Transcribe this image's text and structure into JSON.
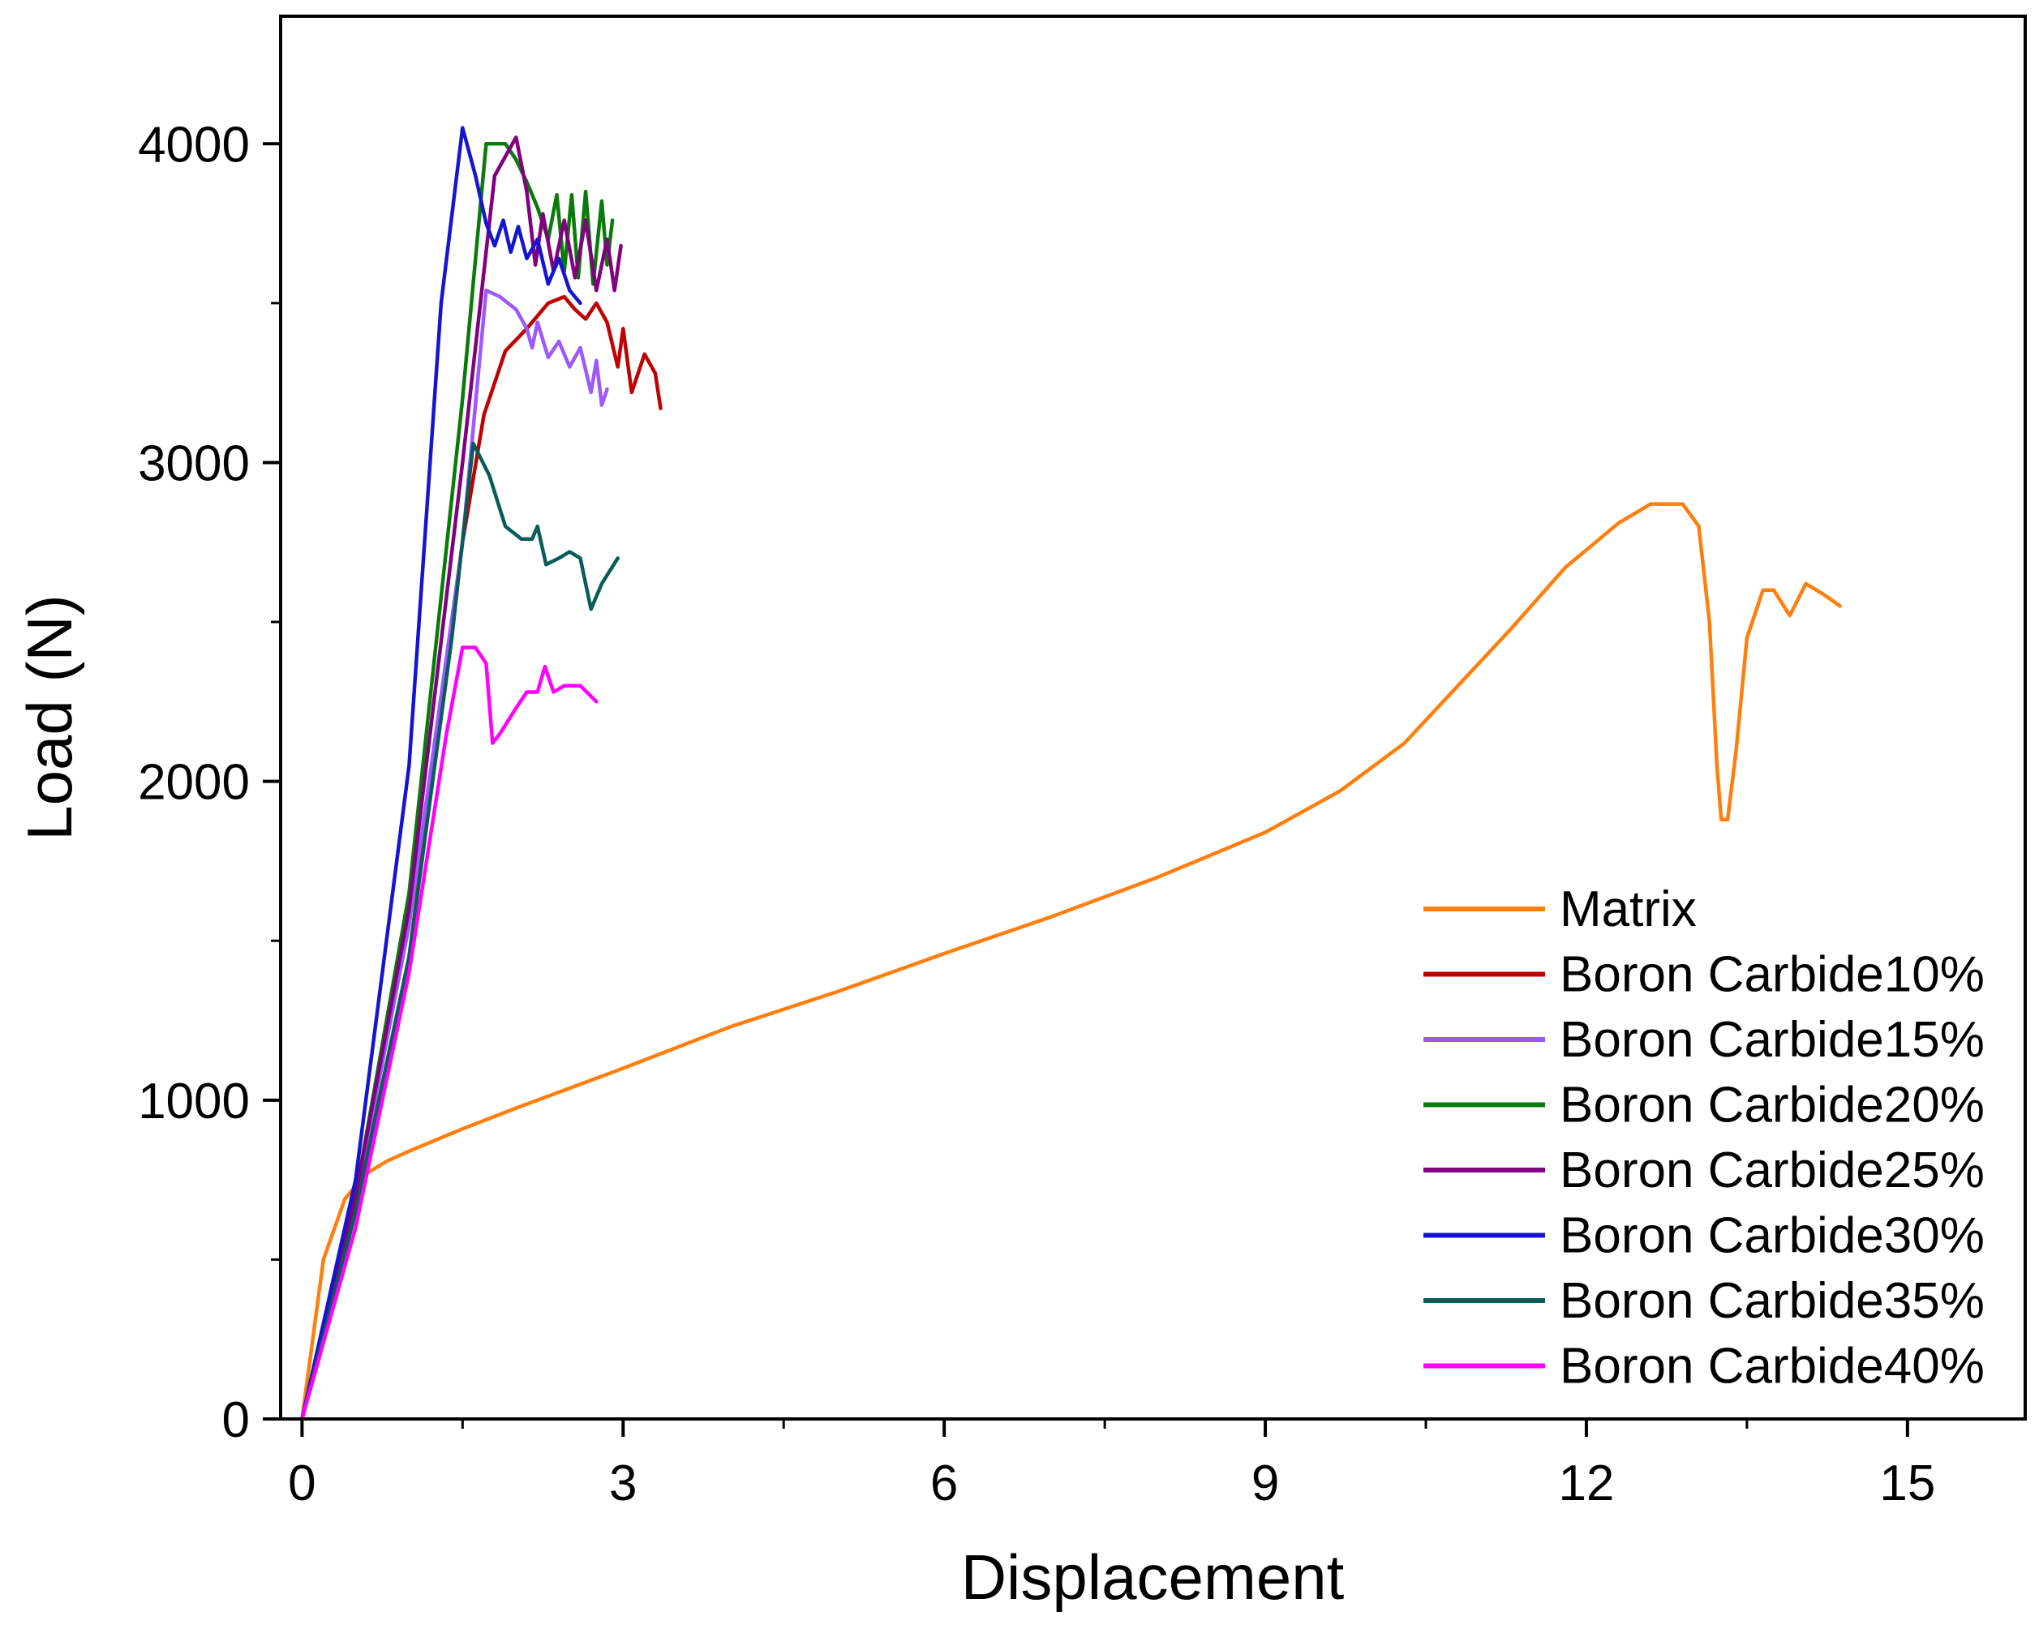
{
  "chart_data": {
    "type": "line",
    "title": "",
    "xlabel": "Displacement",
    "ylabel": "Load (N)",
    "xlim": [
      -0.2,
      16.1
    ],
    "ylim": [
      0,
      4400
    ],
    "x_ticks": [
      0,
      3,
      6,
      9,
      12,
      15
    ],
    "x_tick_labels": [
      "0",
      "3",
      "6",
      "9",
      "12",
      "15"
    ],
    "y_ticks": [
      0,
      1000,
      2000,
      3000,
      4000
    ],
    "y_tick_labels": [
      "0",
      "1000",
      "2000",
      "3000",
      "4000"
    ],
    "legend_position": "bottom-right",
    "series": [
      {
        "name": "Matrix",
        "color": "#ff7f0e",
        "points": [
          [
            0,
            0
          ],
          [
            0.2,
            500
          ],
          [
            0.4,
            690
          ],
          [
            0.6,
            770
          ],
          [
            0.8,
            810
          ],
          [
            1,
            840
          ],
          [
            1.5,
            910
          ],
          [
            2,
            975
          ],
          [
            3,
            1100
          ],
          [
            4,
            1230
          ],
          [
            5,
            1340
          ],
          [
            6,
            1460
          ],
          [
            7,
            1575
          ],
          [
            8,
            1700
          ],
          [
            9,
            1840
          ],
          [
            9.7,
            1970
          ],
          [
            10.3,
            2120
          ],
          [
            10.8,
            2300
          ],
          [
            11.3,
            2480
          ],
          [
            11.8,
            2670
          ],
          [
            12.3,
            2810
          ],
          [
            12.6,
            2870
          ],
          [
            12.9,
            2870
          ],
          [
            13.05,
            2800
          ],
          [
            13.15,
            2500
          ],
          [
            13.22,
            2050
          ],
          [
            13.26,
            1880
          ],
          [
            13.32,
            1880
          ],
          [
            13.4,
            2100
          ],
          [
            13.5,
            2450
          ],
          [
            13.65,
            2600
          ],
          [
            13.75,
            2600
          ],
          [
            13.9,
            2520
          ],
          [
            14.05,
            2620
          ],
          [
            14.2,
            2590
          ],
          [
            14.37,
            2550
          ]
        ]
      },
      {
        "name": "Boron Carbide10%",
        "color": "#c00000",
        "points": [
          [
            0,
            0
          ],
          [
            0.5,
            650
          ],
          [
            1,
            1450
          ],
          [
            1.5,
            2750
          ],
          [
            1.7,
            3150
          ],
          [
            1.9,
            3350
          ],
          [
            2.1,
            3420
          ],
          [
            2.3,
            3500
          ],
          [
            2.45,
            3520
          ],
          [
            2.55,
            3480
          ],
          [
            2.65,
            3450
          ],
          [
            2.75,
            3500
          ],
          [
            2.85,
            3440
          ],
          [
            2.95,
            3300
          ],
          [
            3.0,
            3420
          ],
          [
            3.08,
            3220
          ],
          [
            3.2,
            3340
          ],
          [
            3.3,
            3280
          ],
          [
            3.35,
            3170
          ]
        ]
      },
      {
        "name": "Boron Carbide15%",
        "color": "#9b59ff",
        "points": [
          [
            0,
            0
          ],
          [
            0.5,
            680
          ],
          [
            1,
            1550
          ],
          [
            1.5,
            2750
          ],
          [
            1.72,
            3540
          ],
          [
            1.85,
            3520
          ],
          [
            2.0,
            3480
          ],
          [
            2.1,
            3420
          ],
          [
            2.15,
            3360
          ],
          [
            2.2,
            3440
          ],
          [
            2.3,
            3330
          ],
          [
            2.4,
            3380
          ],
          [
            2.5,
            3300
          ],
          [
            2.6,
            3360
          ],
          [
            2.7,
            3220
          ],
          [
            2.75,
            3320
          ],
          [
            2.8,
            3180
          ],
          [
            2.85,
            3230
          ]
        ]
      },
      {
        "name": "Boron Carbide20%",
        "color": "#0a7a0a",
        "points": [
          [
            0,
            0
          ],
          [
            0.5,
            700
          ],
          [
            1,
            1650
          ],
          [
            1.5,
            3200
          ],
          [
            1.72,
            4000
          ],
          [
            1.9,
            4000
          ],
          [
            2.0,
            3950
          ],
          [
            2.1,
            3880
          ],
          [
            2.2,
            3800
          ],
          [
            2.3,
            3700
          ],
          [
            2.38,
            3840
          ],
          [
            2.45,
            3600
          ],
          [
            2.52,
            3840
          ],
          [
            2.58,
            3580
          ],
          [
            2.65,
            3850
          ],
          [
            2.72,
            3560
          ],
          [
            2.8,
            3820
          ],
          [
            2.85,
            3620
          ],
          [
            2.9,
            3760
          ]
        ]
      },
      {
        "name": "Boron Carbide25%",
        "color": "#800080",
        "points": [
          [
            0,
            0
          ],
          [
            0.5,
            700
          ],
          [
            1,
            1600
          ],
          [
            1.5,
            3000
          ],
          [
            1.8,
            3900
          ],
          [
            2.0,
            4020
          ],
          [
            2.1,
            3850
          ],
          [
            2.18,
            3620
          ],
          [
            2.25,
            3780
          ],
          [
            2.35,
            3600
          ],
          [
            2.45,
            3760
          ],
          [
            2.55,
            3580
          ],
          [
            2.65,
            3760
          ],
          [
            2.75,
            3540
          ],
          [
            2.85,
            3700
          ],
          [
            2.92,
            3540
          ],
          [
            2.98,
            3680
          ]
        ]
      },
      {
        "name": "Boron Carbide30%",
        "color": "#1515d0",
        "points": [
          [
            0,
            0
          ],
          [
            0.5,
            750
          ],
          [
            1,
            2050
          ],
          [
            1.3,
            3500
          ],
          [
            1.5,
            4050
          ],
          [
            1.62,
            3900
          ],
          [
            1.72,
            3750
          ],
          [
            1.8,
            3680
          ],
          [
            1.88,
            3760
          ],
          [
            1.95,
            3660
          ],
          [
            2.02,
            3740
          ],
          [
            2.1,
            3640
          ],
          [
            2.2,
            3700
          ],
          [
            2.3,
            3560
          ],
          [
            2.4,
            3640
          ],
          [
            2.5,
            3540
          ],
          [
            2.6,
            3500
          ]
        ]
      },
      {
        "name": "Boron Carbide35%",
        "color": "#0b5b5b",
        "points": [
          [
            0,
            0
          ],
          [
            0.5,
            650
          ],
          [
            1,
            1450
          ],
          [
            1.4,
            2450
          ],
          [
            1.6,
            3060
          ],
          [
            1.75,
            2960
          ],
          [
            1.9,
            2800
          ],
          [
            2.05,
            2760
          ],
          [
            2.15,
            2760
          ],
          [
            2.2,
            2800
          ],
          [
            2.28,
            2680
          ],
          [
            2.4,
            2700
          ],
          [
            2.5,
            2720
          ],
          [
            2.6,
            2700
          ],
          [
            2.7,
            2540
          ],
          [
            2.8,
            2620
          ],
          [
            2.95,
            2700
          ]
        ]
      },
      {
        "name": "Boron Carbide40%",
        "color": "#ff00ff",
        "points": [
          [
            0,
            0
          ],
          [
            0.5,
            600
          ],
          [
            1,
            1400
          ],
          [
            1.35,
            2150
          ],
          [
            1.5,
            2420
          ],
          [
            1.62,
            2420
          ],
          [
            1.72,
            2370
          ],
          [
            1.78,
            2120
          ],
          [
            1.85,
            2150
          ],
          [
            2.0,
            2230
          ],
          [
            2.1,
            2280
          ],
          [
            2.2,
            2280
          ],
          [
            2.27,
            2360
          ],
          [
            2.35,
            2280
          ],
          [
            2.45,
            2300
          ],
          [
            2.6,
            2300
          ],
          [
            2.75,
            2250
          ]
        ]
      }
    ]
  }
}
